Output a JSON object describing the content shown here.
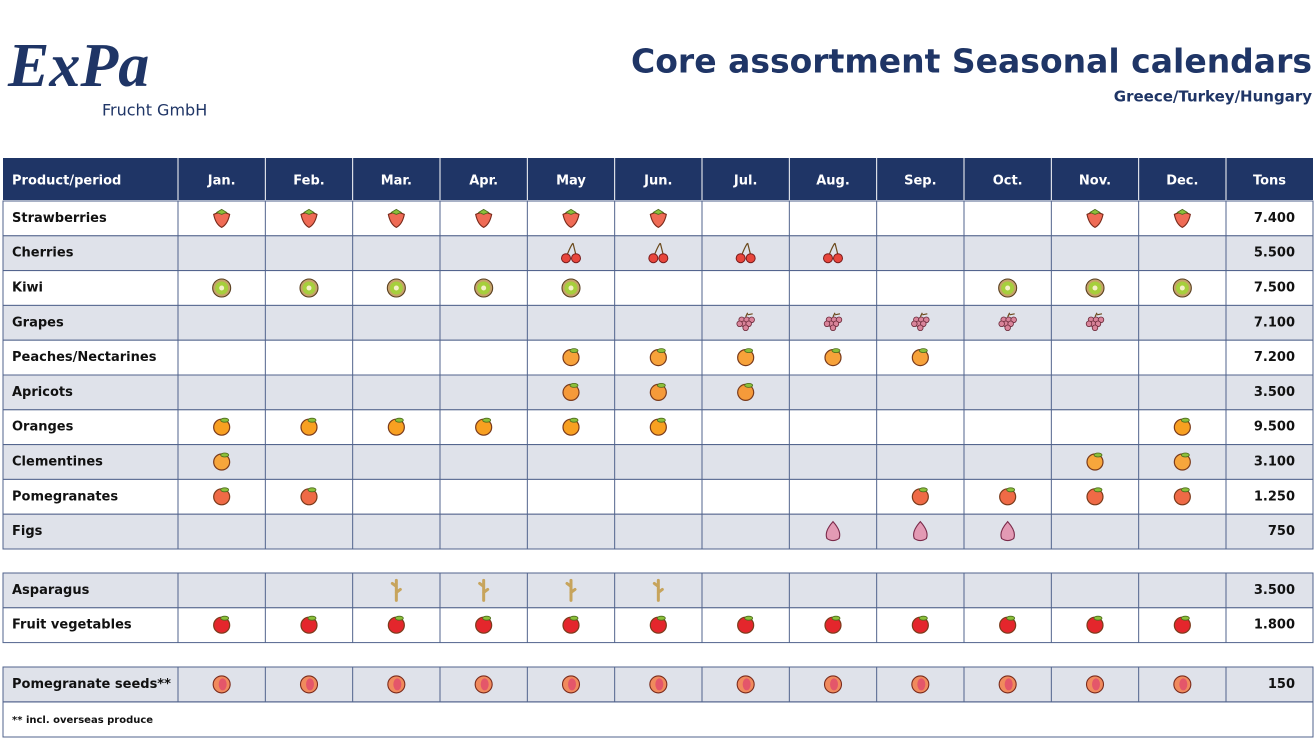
{
  "header": {
    "logo": "ExPa",
    "logo_sub": "Frucht GmbH",
    "title": "Core assortment Seasonal calendars",
    "subtitle": "Greece/Turkey/Hungary"
  },
  "table": {
    "columns": [
      "Product/period",
      "Jan.",
      "Feb.",
      "Mar.",
      "Apr.",
      "May",
      "Jun.",
      "Jul.",
      "Aug.",
      "Sep.",
      "Oct.",
      "Nov.",
      "Dec.",
      "Tons"
    ],
    "sections": [
      [
        {
          "product": "Strawberries",
          "months": [
            true,
            true,
            true,
            true,
            true,
            true,
            false,
            false,
            false,
            false,
            true,
            true
          ],
          "tons": "7.400"
        },
        {
          "product": "Cherries",
          "months": [
            false,
            false,
            false,
            false,
            true,
            true,
            true,
            true,
            false,
            false,
            false,
            false
          ],
          "tons": "5.500"
        },
        {
          "product": "Kiwi",
          "months": [
            true,
            true,
            true,
            true,
            true,
            false,
            false,
            false,
            false,
            true,
            true,
            true
          ],
          "tons": "7.500"
        },
        {
          "product": "Grapes",
          "months": [
            false,
            false,
            false,
            false,
            false,
            false,
            true,
            true,
            true,
            true,
            true,
            false
          ],
          "tons": "7.100"
        },
        {
          "product": "Peaches/Nectarines",
          "months": [
            false,
            false,
            false,
            false,
            true,
            true,
            true,
            true,
            true,
            false,
            false,
            false
          ],
          "tons": "7.200"
        },
        {
          "product": "Apricots",
          "months": [
            false,
            false,
            false,
            false,
            true,
            true,
            true,
            false,
            false,
            false,
            false,
            false
          ],
          "tons": "3.500"
        },
        {
          "product": "Oranges",
          "months": [
            true,
            true,
            true,
            true,
            true,
            true,
            false,
            false,
            false,
            false,
            false,
            true
          ],
          "tons": "9.500"
        },
        {
          "product": "Clementines",
          "months": [
            true,
            false,
            false,
            false,
            false,
            false,
            false,
            false,
            false,
            false,
            true,
            true
          ],
          "tons": "3.100"
        },
        {
          "product": "Pomegranates",
          "months": [
            true,
            true,
            false,
            false,
            false,
            false,
            false,
            false,
            true,
            true,
            true,
            true
          ],
          "tons": "1.250"
        },
        {
          "product": "Figs",
          "months": [
            false,
            false,
            false,
            false,
            false,
            false,
            false,
            true,
            true,
            true,
            false,
            false
          ],
          "tons": "750"
        }
      ],
      [
        {
          "product": "Asparagus",
          "months": [
            false,
            false,
            true,
            true,
            true,
            true,
            false,
            false,
            false,
            false,
            false,
            false
          ],
          "tons": "3.500"
        },
        {
          "product": "Fruit vegetables",
          "months": [
            true,
            true,
            true,
            true,
            true,
            true,
            true,
            true,
            true,
            true,
            true,
            true
          ],
          "tons": "1.800"
        }
      ],
      [
        {
          "product": "Pomegranate seeds**",
          "months": [
            true,
            true,
            true,
            true,
            true,
            true,
            true,
            true,
            true,
            true,
            true,
            true
          ],
          "tons": "150"
        }
      ]
    ],
    "footnote": "** incl. overseas produce"
  }
}
